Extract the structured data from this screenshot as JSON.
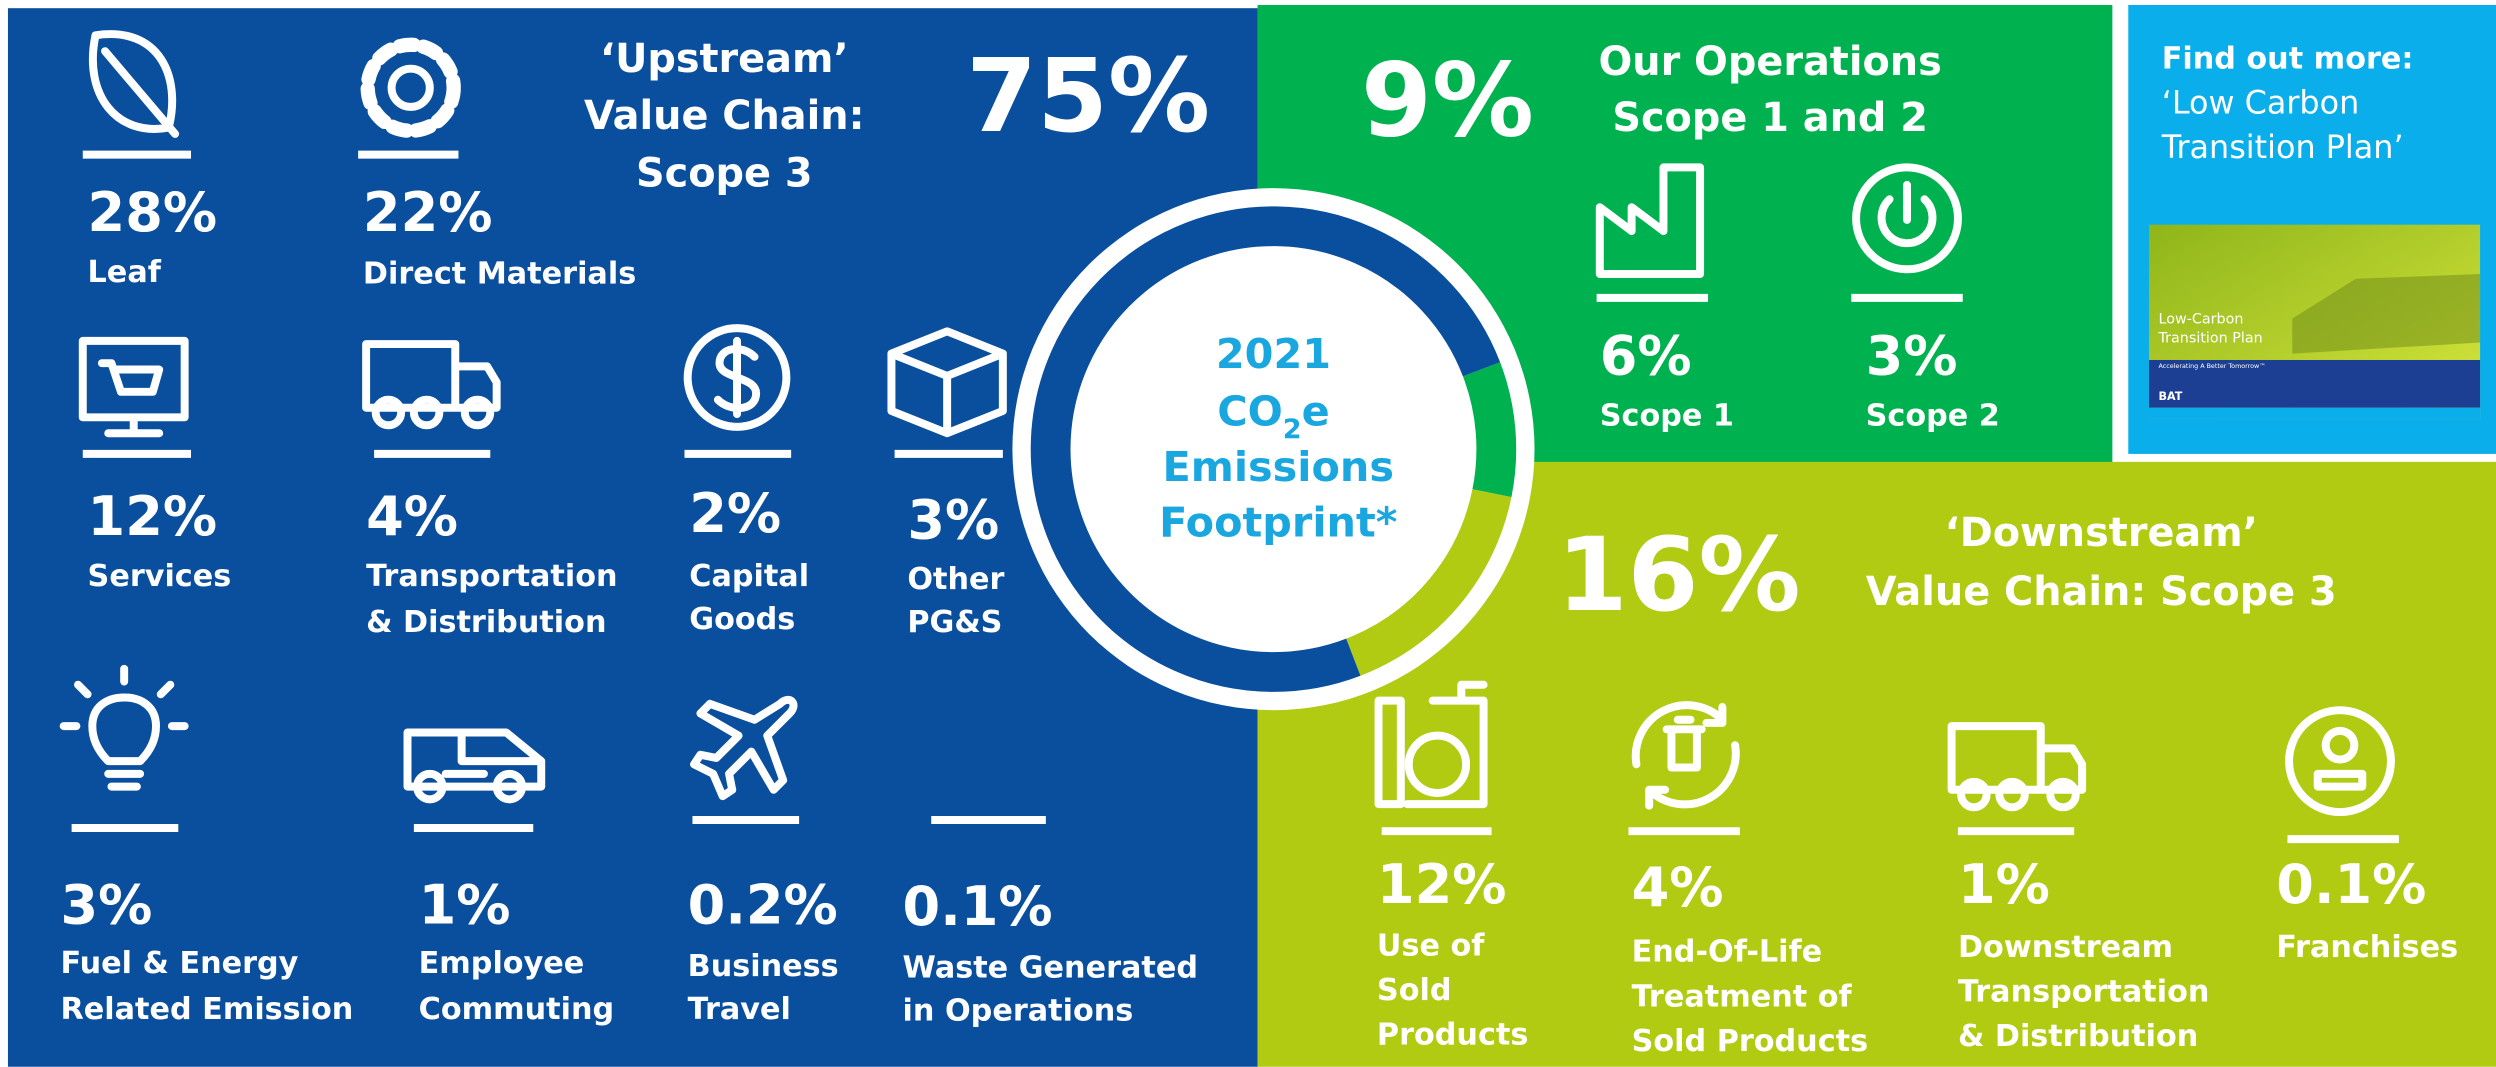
{
  "chart_data": {
    "type": "donut",
    "values": [
      9,
      16,
      75
    ],
    "value_labels": [
      "9%",
      "16%",
      "75%"
    ],
    "colors": [
      "#00b14f",
      "#b0cb12",
      "#0a4f9e"
    ],
    "title": {
      "year": "2021",
      "co": "CO",
      "sub": "2",
      "e": "e",
      "line3": "Emissions",
      "line4": "Footprint*"
    }
  },
  "upstream": {
    "heading": [
      "‘Upstream’",
      "Value Chain:",
      "Scope 3"
    ],
    "items": [
      {
        "percent": "28%",
        "label": [
          "Leaf"
        ]
      },
      {
        "percent": "22%",
        "label": [
          "Direct Materials"
        ]
      },
      {
        "percent": "12%",
        "label": [
          "Services"
        ]
      },
      {
        "percent": "4%",
        "label": [
          "Transportation",
          "& Distribution"
        ]
      },
      {
        "percent": "2%",
        "label": [
          "Capital",
          "Goods"
        ]
      },
      {
        "percent": "3%",
        "label": [
          "Other",
          "PG&S"
        ]
      },
      {
        "percent": "3%",
        "label": [
          "Fuel & Energy",
          "Related Emission"
        ]
      },
      {
        "percent": "1%",
        "label": [
          "Employee",
          "Commuting"
        ]
      },
      {
        "percent": "0.2%",
        "label": [
          "Business",
          "Travel"
        ]
      },
      {
        "percent": "0.1%",
        "label": [
          "Waste Generated",
          "in Operations"
        ]
      }
    ]
  },
  "operations": {
    "heading": [
      "Our Operations",
      "Scope 1 and 2"
    ],
    "items": [
      {
        "percent": "6%",
        "label": [
          "Scope 1"
        ]
      },
      {
        "percent": "3%",
        "label": [
          "Scope 2"
        ]
      }
    ]
  },
  "downstream": {
    "heading": [
      "‘Downstream’",
      "Value Chain: Scope 3"
    ],
    "items": [
      {
        "percent": "12%",
        "label": [
          "Use of",
          "Sold",
          "Products"
        ]
      },
      {
        "percent": "4%",
        "label": [
          "End-Of-Life",
          "Treatment of",
          "Sold Products"
        ]
      },
      {
        "percent": "1%",
        "label": [
          "Downstream",
          "Transportation",
          "& Distribution"
        ]
      },
      {
        "percent": "0.1%",
        "label": [
          "Franchises"
        ]
      }
    ]
  },
  "find_out_more": {
    "heading": "Find out more:",
    "link": [
      "‘Low Carbon",
      "Transition Plan’"
    ],
    "thumbnail": {
      "title": [
        "Low-Carbon",
        "Transition Plan"
      ],
      "tagline": "Accelerating A Better Tomorrow™",
      "logo": "BAT"
    }
  }
}
